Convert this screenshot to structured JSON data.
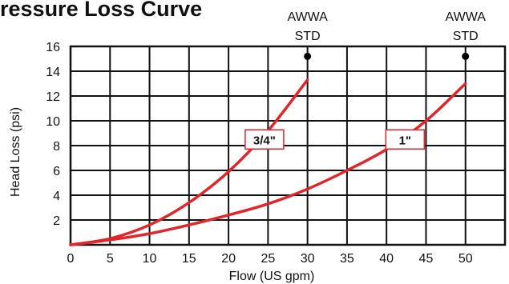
{
  "chart_data": {
    "type": "line",
    "title": "Pressure Loss Curve",
    "xlabel": "Flow (US gpm)",
    "ylabel": "Head Loss (psi)",
    "xlim": [
      0,
      55
    ],
    "ylim": [
      0,
      16
    ],
    "x_ticks": [
      "0",
      "5",
      "10",
      "15",
      "20",
      "25",
      "30",
      "35",
      "40",
      "45",
      "50"
    ],
    "y_ticks": [
      "2",
      "4",
      "6",
      "8",
      "10",
      "12",
      "14",
      "16"
    ],
    "grid": true,
    "series": [
      {
        "name": "3/4\"",
        "x": [
          0,
          5,
          10,
          15,
          20,
          25,
          30
        ],
        "y": [
          0,
          0.5,
          1.6,
          3.4,
          5.9,
          9.2,
          13.3
        ]
      },
      {
        "name": "1\"",
        "x": [
          0,
          5,
          10,
          15,
          20,
          25,
          30,
          35,
          40,
          45,
          50
        ],
        "y": [
          0,
          0.4,
          0.9,
          1.6,
          2.4,
          3.3,
          4.5,
          6.0,
          7.7,
          10.0,
          13.0
        ]
      }
    ],
    "annotations": [
      {
        "label_line1": "AWWA",
        "label_line2": "STD",
        "x": 30,
        "y": 15.2
      },
      {
        "label_line1": "AWWA",
        "label_line2": "STD",
        "x": 50,
        "y": 15.2
      }
    ],
    "colors": {
      "curve": "#e0262b",
      "grid": "#111111",
      "label_border": "#e0262b",
      "marker": "#000000"
    }
  }
}
